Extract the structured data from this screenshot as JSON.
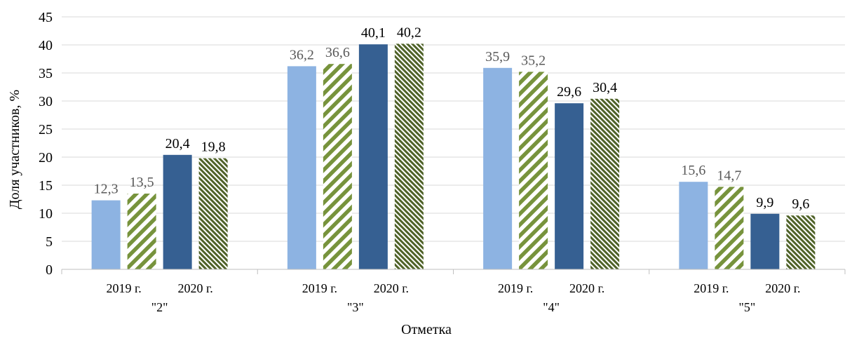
{
  "chart_data": {
    "type": "bar",
    "xlabel": "Отметка",
    "ylabel": "Доля участников, %",
    "ylim": [
      0,
      45
    ],
    "yticks": [
      0,
      5,
      10,
      15,
      20,
      25,
      30,
      35,
      40,
      45
    ],
    "grid": true,
    "legend": "none",
    "groups": [
      {
        "label": "\"2\"",
        "year_labels": [
          "2019 г.",
          "2020 г."
        ],
        "values": [
          12.3,
          13.5,
          20.4,
          19.8
        ],
        "value_labels": [
          "12,3",
          "13,5",
          "20,4",
          "19,8"
        ]
      },
      {
        "label": "\"3\"",
        "year_labels": [
          "2019 г.",
          "2020 г."
        ],
        "values": [
          36.2,
          36.6,
          40.1,
          40.2
        ],
        "value_labels": [
          "36,2",
          "36,6",
          "40,1",
          "40,2"
        ]
      },
      {
        "label": "\"4\"",
        "year_labels": [
          "2019 г.",
          "2020 г."
        ],
        "values": [
          35.9,
          35.2,
          29.6,
          30.4
        ],
        "value_labels": [
          "35,9",
          "35,2",
          "29,6",
          "30,4"
        ]
      },
      {
        "label": "\"5\"",
        "year_labels": [
          "2019 г.",
          "2020 г."
        ],
        "values": [
          15.6,
          14.7,
          9.9,
          9.6
        ],
        "value_labels": [
          "15,6",
          "14,7",
          "9,9",
          "9,6"
        ]
      }
    ],
    "bar_styles": [
      {
        "fill": "solid",
        "color": "#8db3e2"
      },
      {
        "fill": "diagonal-stripes",
        "color": "#77933c"
      },
      {
        "fill": "solid",
        "color": "#366092"
      },
      {
        "fill": "dense-stripes",
        "color": "#4f6228"
      }
    ],
    "colors": {
      "grid": "#d9d9d9",
      "axis": "#bfbfbf",
      "label_2019": "#595959",
      "label_2020": "#000000",
      "text": "#000000"
    }
  }
}
